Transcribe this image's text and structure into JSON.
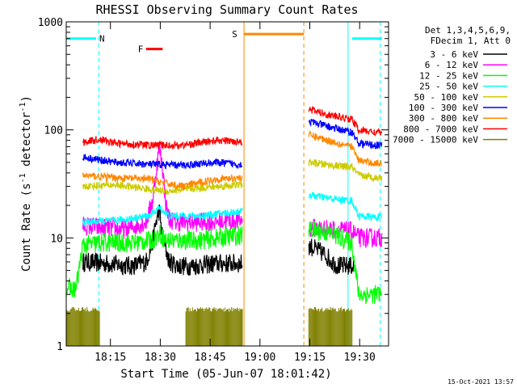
{
  "chart_data": {
    "type": "line",
    "title": "RHESSI Observing Summary Count Rates",
    "xlabel": "Start Time (05-Jun-07 18:01:42)",
    "ylabel_main": "Count Rate (s",
    "ylabel_sup1": "-1",
    "ylabel_mid": " detector",
    "ylabel_sup2": "-1",
    "ylabel_end": ")",
    "y_scale": "log",
    "ylim": [
      1,
      1000
    ],
    "xlim_minutes": [
      0,
      97
    ],
    "x_tick_minutes": [
      13.3,
      28.3,
      43.3,
      58.3,
      73.3,
      88.3
    ],
    "x_tick_labels": [
      "18:15",
      "18:30",
      "18:45",
      "19:00",
      "19:15",
      "19:30"
    ],
    "y_ticks": [
      1,
      10,
      100,
      1000
    ],
    "y_tick_labels": [
      "1",
      "10",
      "100",
      "1000"
    ],
    "legend_header": [
      "Det 1,3,4,5,6,9,",
      "FDecim 1, Att 0"
    ],
    "series": [
      {
        "name": "3 - 6 keV",
        "color": "#000000",
        "segments": [
          {
            "x": [
              5,
              12,
              20,
              24,
              26,
              27,
              28,
              29,
              31,
              34,
              38,
              45,
              52,
              53
            ],
            "y": [
              6,
              5.8,
              5.5,
              6,
              9,
              14,
              18,
              10,
              6,
              5.5,
              5.5,
              5.8,
              5.8,
              5.8
            ]
          },
          {
            "x": [
              73,
              78,
              80,
              82,
              85,
              87
            ],
            "y": [
              8.5,
              7,
              6,
              5.5,
              5.5,
              5.5
            ]
          }
        ]
      },
      {
        "name": "6 - 12 keV",
        "color": "#ff00ff",
        "segments": [
          {
            "x": [
              5,
              10,
              18,
              24,
              26,
              27,
              28,
              29,
              30,
              31,
              33,
              40,
              52,
              53
            ],
            "y": [
              13,
              12.5,
              12,
              14,
              22,
              40,
              70,
              45,
              20,
              15,
              14,
              14,
              14.5,
              14.5
            ]
          },
          {
            "x": [
              73,
              80,
              86,
              88,
              93,
              95
            ],
            "y": [
              12.5,
              12,
              11.5,
              10,
              10,
              10
            ]
          }
        ]
      },
      {
        "name": "12 - 25 keV",
        "color": "#00ff00",
        "segments": [
          {
            "x": [
              0,
              2,
              3,
              5,
              10,
              20,
              26,
              28,
              30,
              40,
              52,
              53
            ],
            "y": [
              3.5,
              3.3,
              3.5,
              8.5,
              9,
              9,
              9.5,
              11,
              9.5,
              9.5,
              10.5,
              10.5
            ]
          },
          {
            "x": [
              73,
              80,
              86,
              88,
              93,
              95
            ],
            "y": [
              12,
              11,
              9,
              3,
              3,
              3
            ]
          }
        ]
      },
      {
        "name": "25 - 50 keV",
        "color": "#00ffff",
        "segments": [
          {
            "x": [
              5,
              15,
              25,
              28,
              31,
              40,
              48,
              52,
              53
            ],
            "y": [
              14,
              14.5,
              16,
              19,
              16,
              16,
              17,
              17.5,
              17.5
            ]
          },
          {
            "x": [
              73,
              80,
              86,
              88,
              93,
              95
            ],
            "y": [
              25,
              23,
              22,
              16,
              15.5,
              15.5
            ]
          }
        ]
      },
      {
        "name": "50 - 100 keV",
        "color": "#cccc00",
        "segments": [
          {
            "x": [
              5,
              15,
              30,
              40,
              52,
              53
            ],
            "y": [
              30,
              31,
              27,
              29,
              31,
              31
            ]
          },
          {
            "x": [
              73,
              80,
              86,
              88,
              93,
              95
            ],
            "y": [
              50,
              47,
              45,
              38,
              36,
              36
            ]
          }
        ]
      },
      {
        "name": "100 - 300 keV",
        "color": "#0000ff",
        "segments": [
          {
            "x": [
              5,
              15,
              25,
              35,
              45,
              52,
              53
            ],
            "y": [
              56,
              50,
              48,
              47,
              50,
              48,
              48
            ]
          },
          {
            "x": [
              73,
              80,
              86,
              88,
              93,
              95
            ],
            "y": [
              120,
              105,
              95,
              75,
              72,
              72
            ]
          }
        ]
      },
      {
        "name": "300 - 800 keV",
        "color": "#ff8800",
        "segments": [
          {
            "x": [
              5,
              15,
              25,
              30,
              35,
              45,
              52,
              53
            ],
            "y": [
              38,
              36,
              35,
              32,
              30,
              35,
              36,
              36
            ]
          },
          {
            "x": [
              73,
              80,
              86,
              88,
              93,
              95
            ],
            "y": [
              90,
              78,
              70,
              52,
              49,
              49
            ]
          }
        ]
      },
      {
        "name": "800 - 7000 keV",
        "color": "#ff0000",
        "segments": [
          {
            "x": [
              5,
              10,
              15,
              25,
              35,
              45,
              52,
              53
            ],
            "y": [
              77,
              82,
              75,
              72,
              72,
              80,
              78,
              78
            ]
          },
          {
            "x": [
              73,
              80,
              86,
              88,
              93,
              95
            ],
            "y": [
              155,
              135,
              125,
              100,
              95,
              95
            ]
          }
        ]
      },
      {
        "name": "7000 - 15000 keV",
        "color": "#808000",
        "segments": [
          {
            "x": [
              0,
              10
            ],
            "y": [
              2.3,
              2.3
            ]
          },
          {
            "x": [
              36,
              53
            ],
            "y": [
              2.3,
              2.3
            ]
          },
          {
            "x": [
              73,
              86
            ],
            "y": [
              2.3,
              2.3
            ]
          }
        ]
      }
    ],
    "annotations": [
      {
        "label": "N",
        "color": "#00ffff",
        "bar_start": 0,
        "bar_end": 9,
        "level": 700,
        "dashed_x": 9.8,
        "solid_x": null
      },
      {
        "label": "F",
        "color": "#ff0000",
        "bar_start": 24,
        "bar_end": 29,
        "level": 560,
        "dashed_x": null,
        "solid_x": null
      },
      {
        "label": "S",
        "color": "#ff8800",
        "bar_start": 53.5,
        "bar_end": 71.5,
        "level": 770,
        "dashed_x": 71.5,
        "solid_x": 53.5
      },
      {
        "label": "",
        "color": "#00ffff",
        "bar_start": 86,
        "bar_end": 95,
        "level": 700,
        "dashed_x": 94.5,
        "solid_x": 84.8
      }
    ]
  },
  "footer": {
    "timestamp": "15-Oct-2021 13:57"
  }
}
